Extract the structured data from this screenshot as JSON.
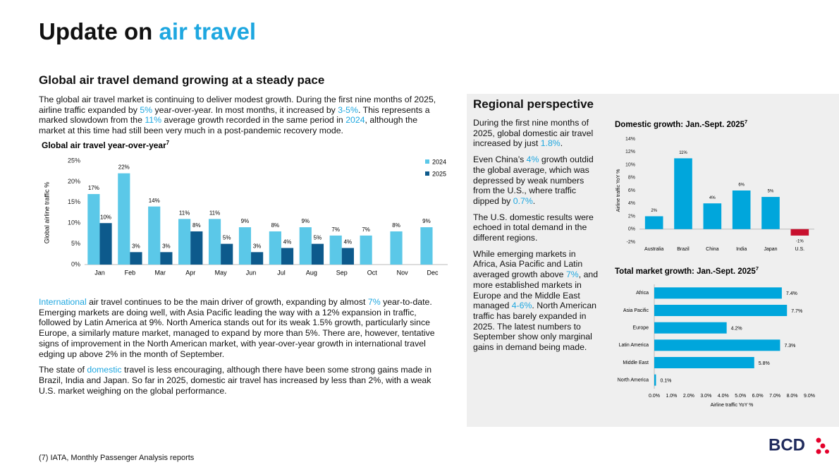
{
  "header": {
    "title": [
      {
        "text": "Update on "
      },
      {
        "text": "air travel",
        "color": "#1ea7e0"
      }
    ]
  },
  "section": {
    "heading": "Global air travel demand growing at a steady pace",
    "paragraphs_top": [
      [
        {
          "text": "The global air travel market is continuing to deliver modest growth. During the first nine months of 2025, airline traffic expanded by "
        },
        {
          "text": "5%",
          "color": "#1ea7e0"
        },
        {
          "text": " year-over-year. In most months, it increased by "
        },
        {
          "text": "3-5%",
          "color": "#1ea7e0"
        },
        {
          "text": ". This represents a marked slowdown from the "
        },
        {
          "text": "11%",
          "color": "#1ea7e0"
        },
        {
          "text": " average growth recorded in the same period in "
        },
        {
          "text": "2024",
          "color": "#1ea7e0"
        },
        {
          "text": ", although the market at this time had still been very much in a post-pandemic recovery mode."
        }
      ]
    ],
    "paragraphs_bottom": [
      [
        {
          "text": "International",
          "color": "#1ea7e0"
        },
        {
          "text": " air travel continues to be the main driver of growth, expanding by almost "
        },
        {
          "text": "7%",
          "color": "#1ea7e0"
        },
        {
          "text": " year-to-date. Emerging markets are doing well, with Asia Pacific leading the way with a 12% expansion in traffic, followed by Latin America at 9%. North America stands out for its weak 1.5% growth, particularly since Europe, a similarly mature market, managed to expand by more than 5%. There are, however, tentative signs of improvement in the North American market, with year-over-year growth in international travel edging up above 2% in the month of September."
        }
      ],
      [
        {
          "text": "The state of "
        },
        {
          "text": "domestic",
          "color": "#1ea7e0"
        },
        {
          "text": " travel is less encouraging, although there have been some strong gains made in Brazil, India and Japan. So far in 2025, domestic air travel has increased by less than 2%, with a weak U.S. market weighing on the global performance."
        }
      ]
    ]
  },
  "regional": {
    "heading": "Regional perspective",
    "paragraphs": [
      [
        {
          "text": "During the first nine months of 2025, global domestic air travel increased by just "
        },
        {
          "text": "1.8%",
          "color": "#1ea7e0"
        },
        {
          "text": "."
        }
      ],
      [
        {
          "text": "Even China’s "
        },
        {
          "text": "4%",
          "color": "#1ea7e0"
        },
        {
          "text": " growth outdid the global average, which was depressed by weak numbers from the U.S., where traffic dipped by "
        },
        {
          "text": "0.7%",
          "color": "#1ea7e0"
        },
        {
          "text": "."
        }
      ],
      [
        {
          "text": "The U.S. domestic results were echoed in total demand in the different regions."
        }
      ],
      [
        {
          "text": "While emerging markets in Africa, Asia Pacific and Latin averaged growth above "
        },
        {
          "text": "7%",
          "color": "#1ea7e0"
        },
        {
          "text": ", and more established markets in Europe and the Middle East managed "
        },
        {
          "text": "4-6%",
          "color": "#1ea7e0"
        },
        {
          "text": ". North American traffic has barely expanded in 2025. The latest numbers to September show only marginal gains in demand being made."
        }
      ]
    ]
  },
  "chart_data": [
    {
      "type": "bar",
      "title": "Global air travel year-over-year",
      "title_note": "7",
      "y_label": "Global airline traffic %",
      "categories": [
        "Jan",
        "Feb",
        "Mar",
        "Apr",
        "May",
        "Jun",
        "Jul",
        "Aug",
        "Sep",
        "Oct",
        "Nov",
        "Dec"
      ],
      "series": [
        {
          "name": "2024",
          "color": "#5bc8e8",
          "values": [
            17,
            22,
            14,
            11,
            11,
            9,
            8,
            9,
            7,
            7,
            8,
            9
          ],
          "value_labels": [
            "17%",
            "22%",
            "14%",
            "11%",
            "11%",
            "9%",
            "8%",
            "9%",
            "7%",
            "7%",
            "8%",
            "9%"
          ]
        },
        {
          "name": "2025",
          "color": "#0d5a8c",
          "values": [
            10,
            3,
            3,
            8,
            5,
            3,
            4,
            5,
            4,
            null,
            null,
            null
          ],
          "value_labels": [
            "10%",
            "3%",
            "3%",
            "8%",
            "5%",
            "3%",
            "4%",
            "5%",
            "4%",
            null,
            null,
            null
          ]
        }
      ],
      "ylim": [
        0,
        25
      ],
      "yticks": [
        {
          "value": 0,
          "label": "0%"
        },
        {
          "value": 5,
          "label": "5%"
        },
        {
          "value": 10,
          "label": "10%"
        },
        {
          "value": 15,
          "label": "15%"
        },
        {
          "value": 20,
          "label": "20%"
        },
        {
          "value": 25,
          "label": "25%"
        }
      ],
      "legend": "top-right",
      "grid": false
    },
    {
      "type": "bar",
      "title": "Domestic growth: Jan.-Sept. 2025",
      "title_note": "7",
      "y_label": "Airline traffic YoY %",
      "categories": [
        "Australia",
        "Brazil",
        "China",
        "India",
        "Japan",
        "U.S."
      ],
      "values": [
        2,
        11,
        4,
        6,
        5,
        -1
      ],
      "value_labels": [
        "2%",
        "11%",
        "4%",
        "6%",
        "5%",
        "-1%"
      ],
      "colors": [
        "#00a6dc",
        "#00a6dc",
        "#00a6dc",
        "#00a6dc",
        "#00a6dc",
        "#c8102e"
      ],
      "ylim": [
        -2,
        14
      ],
      "yticks": [
        {
          "value": -2,
          "label": "-2%"
        },
        {
          "value": 0,
          "label": "0%"
        },
        {
          "value": 2,
          "label": "2%"
        },
        {
          "value": 4,
          "label": "4%"
        },
        {
          "value": 6,
          "label": "6%"
        },
        {
          "value": 8,
          "label": "8%"
        },
        {
          "value": 10,
          "label": "10%"
        },
        {
          "value": 12,
          "label": "12%"
        },
        {
          "value": 14,
          "label": "14%"
        }
      ],
      "grid": false
    },
    {
      "type": "hbar",
      "title": "Total market growth: Jan.-Sept. 2025",
      "title_note": "7",
      "x_label": "Airline traffic YoY %",
      "categories": [
        "Africa",
        "Asia Pacific",
        "Europe",
        "Latin America",
        "Middle East",
        "North America"
      ],
      "values": [
        7.4,
        7.7,
        4.2,
        7.3,
        5.8,
        0.1
      ],
      "value_labels": [
        "7.4%",
        "7.7%",
        "4.2%",
        "7.3%",
        "5.8%",
        "0.1%"
      ],
      "color": "#00a6dc",
      "xlim": [
        0,
        9
      ],
      "xticks": [
        {
          "value": 0,
          "label": "0.0%"
        },
        {
          "value": 1,
          "label": "1.0%"
        },
        {
          "value": 2,
          "label": "2.0%"
        },
        {
          "value": 3,
          "label": "3.0%"
        },
        {
          "value": 4,
          "label": "4.0%"
        },
        {
          "value": 5,
          "label": "5.0%"
        },
        {
          "value": 6,
          "label": "6.0%"
        },
        {
          "value": 7,
          "label": "7.0%"
        },
        {
          "value": 8,
          "label": "8.0%"
        },
        {
          "value": 9,
          "label": "9.0%"
        }
      ],
      "grid": false
    }
  ],
  "footer": {
    "note": "(7) IATA, Monthly Passenger Analysis reports",
    "logo": "BCD"
  }
}
